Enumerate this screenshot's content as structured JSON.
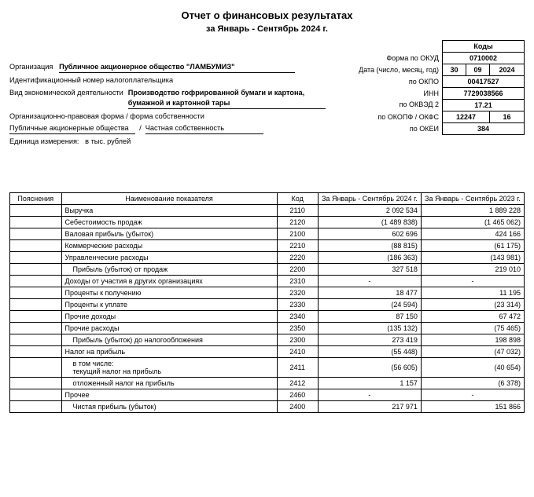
{
  "header": {
    "title": "Отчет о финансовых результатах",
    "subtitle": "за Январь - Сентябрь 2024 г."
  },
  "codes": {
    "kody_label": "Коды",
    "okud_label": "Форма по ОКУД",
    "okud_val": "0710002",
    "date_label": "Дата (число, месяц, год)",
    "date_d": "30",
    "date_m": "09",
    "date_y": "2024",
    "okpo_label": "по ОКПО",
    "okpo_val": "00417527",
    "inn_label": "ИНН",
    "inn_val": "7729038566",
    "okved_label": "по ОКВЭД 2",
    "okved_val": "17.21",
    "okopf_label": "по ОКОПФ / ОКФС",
    "okopf_val1": "12247",
    "okopf_val2": "16",
    "okei_label": "по ОКЕИ",
    "okei_val": "384"
  },
  "info": {
    "org_label": "Организация",
    "org_val": "Публичное акционерное общество \"ЛАМБУМИЗ\"",
    "id_label": "Идентификационный номер налогоплательщика",
    "activity_label": "Вид экономической деятельности",
    "activity_val": "Производство гофрированной бумаги и картона, бумажной и картонной тары",
    "form_label": "Организационно-правовая форма / форма собственности",
    "form_val1": "Публичные акционерные общества",
    "form_val2": "Частная собственность",
    "unit_label": "Единица измерения:",
    "unit_val": "в тыс. рублей"
  },
  "table": {
    "headers": {
      "explanations": "Пояснения",
      "name": "Наименование показателя",
      "code": "Код",
      "current": "За Январь - Сентябрь 2024 г.",
      "prev": "За Январь - Сентябрь 2023 г."
    },
    "rows": [
      {
        "name": "Выручка",
        "code": "2110",
        "cur": "2 092 534",
        "prev": "1 889 228",
        "indent": 0
      },
      {
        "name": "Себестоимость продаж",
        "code": "2120",
        "cur": "(1 489 838)",
        "prev": "(1 465 062)",
        "indent": 0
      },
      {
        "name": "Валовая прибыль (убыток)",
        "code": "2100",
        "cur": "602 696",
        "prev": "424 166",
        "indent": 0
      },
      {
        "name": "Коммерческие расходы",
        "code": "2210",
        "cur": "(88 815)",
        "prev": "(61 175)",
        "indent": 0
      },
      {
        "name": "Управленческие расходы",
        "code": "2220",
        "cur": "(186 363)",
        "prev": "(143 981)",
        "indent": 0
      },
      {
        "name": "Прибыль (убыток) от продаж",
        "code": "2200",
        "cur": "327 518",
        "prev": "219 010",
        "indent": 1
      },
      {
        "name": "Доходы от участия в других организациях",
        "code": "2310",
        "cur": "-",
        "prev": "-",
        "indent": 0
      },
      {
        "name": "Проценты к получению",
        "code": "2320",
        "cur": "18 477",
        "prev": "11 195",
        "indent": 0
      },
      {
        "name": "Проценты к уплате",
        "code": "2330",
        "cur": "(24 594)",
        "prev": "(23 314)",
        "indent": 0
      },
      {
        "name": "Прочие доходы",
        "code": "2340",
        "cur": "87 150",
        "prev": "67 472",
        "indent": 0
      },
      {
        "name": "Прочие расходы",
        "code": "2350",
        "cur": "(135 132)",
        "prev": "(75 465)",
        "indent": 0
      },
      {
        "name": "Прибыль (убыток) до налогообложения",
        "code": "2300",
        "cur": "273 419",
        "prev": "198 898",
        "indent": 1
      },
      {
        "name": "Налог на прибыль",
        "code": "2410",
        "cur": "(55 448)",
        "prev": "(47 032)",
        "indent": 0
      },
      {
        "name": "в том числе:\nтекущий налог на прибыль",
        "code": "2411",
        "cur": "(56 605)",
        "prev": "(40 654)",
        "indent": 1
      },
      {
        "name": "отложенный налог на прибыль",
        "code": "2412",
        "cur": "1 157",
        "prev": "(6 378)",
        "indent": 1
      },
      {
        "name": "Прочее",
        "code": "2460",
        "cur": "-",
        "prev": "-",
        "indent": 0
      },
      {
        "name": "Чистая прибыль (убыток)",
        "code": "2400",
        "cur": "217 971",
        "prev": "151 866",
        "indent": 1
      }
    ]
  }
}
